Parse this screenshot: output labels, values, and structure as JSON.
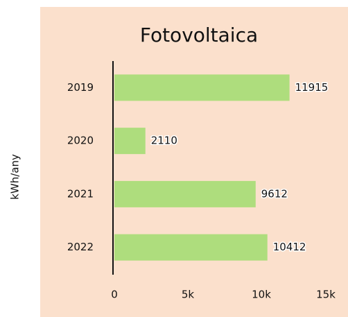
{
  "chart_data": {
    "type": "bar",
    "orientation": "horizontal",
    "title": "Fotovoltaica",
    "y_label": "kWh/any",
    "categories": [
      "2019",
      "2020",
      "2021",
      "2022"
    ],
    "values": [
      11915,
      2110,
      9612,
      10412
    ],
    "color": "#aedd7d",
    "xlim": [
      0,
      15000
    ],
    "xticks": [
      0,
      {
        "value": 5000,
        "label": "5k"
      },
      {
        "value": 10000,
        "label": "10k"
      },
      {
        "value": 15000,
        "label": "15k"
      }
    ],
    "grid": false
  }
}
